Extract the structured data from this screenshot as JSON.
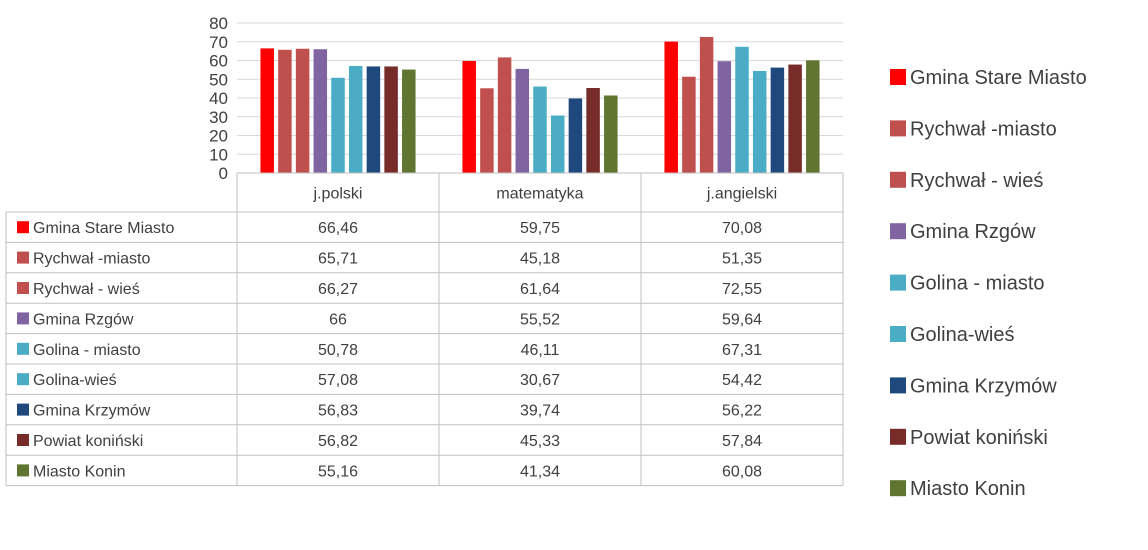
{
  "colors": {
    "grid": "#d9d9d9",
    "table_border": "#bfbfbf",
    "text": "#404040"
  },
  "chart_data": {
    "type": "bar",
    "title": "",
    "xlabel": "",
    "ylabel": "",
    "ylim": [
      0,
      80
    ],
    "yticks": [
      0,
      10,
      20,
      30,
      40,
      50,
      60,
      70,
      80
    ],
    "grid": true,
    "legend_position": "right",
    "data_table": true,
    "categories": [
      "j.polski",
      "matematyka",
      "j.angielski"
    ],
    "series": [
      {
        "name": "Gmina Stare Miasto",
        "color": "#ff0000",
        "values": [
          66.46,
          59.75,
          70.08
        ],
        "display": [
          "66,46",
          "59,75",
          "70,08"
        ]
      },
      {
        "name": "Rychwał -miasto",
        "color": "#c0504d",
        "values": [
          65.71,
          45.18,
          51.35
        ],
        "display": [
          "65,71",
          "45,18",
          "51,35"
        ]
      },
      {
        "name": "Rychwał - wieś",
        "color": "#c0504d",
        "values": [
          66.27,
          61.64,
          72.55
        ],
        "display": [
          "66,27",
          "61,64",
          "72,55"
        ]
      },
      {
        "name": "Gmina Rzgów",
        "color": "#8064a2",
        "values": [
          66,
          55.52,
          59.64
        ],
        "display": [
          "66",
          "55,52",
          "59,64"
        ]
      },
      {
        "name": "Golina - miasto",
        "color": "#4bacc6",
        "values": [
          50.78,
          46.11,
          67.31
        ],
        "display": [
          "50,78",
          "46,11",
          "67,31"
        ]
      },
      {
        "name": "Golina-wieś",
        "color": "#4bacc6",
        "values": [
          57.08,
          30.67,
          54.42
        ],
        "display": [
          "57,08",
          "30,67",
          "54,42"
        ]
      },
      {
        "name": "Gmina Krzymów",
        "color": "#1f497d",
        "values": [
          56.83,
          39.74,
          56.22
        ],
        "display": [
          "56,83",
          "39,74",
          "56,22"
        ]
      },
      {
        "name": "Powiat koniński",
        "color": "#772c2a",
        "values": [
          56.82,
          45.33,
          57.84
        ],
        "display": [
          "56,82",
          "45,33",
          "57,84"
        ]
      },
      {
        "name": "Miasto Konin",
        "color": "#5f7530",
        "values": [
          55.16,
          41.34,
          60.08
        ],
        "display": [
          "55,16",
          "41,34",
          "60,08"
        ]
      }
    ]
  }
}
